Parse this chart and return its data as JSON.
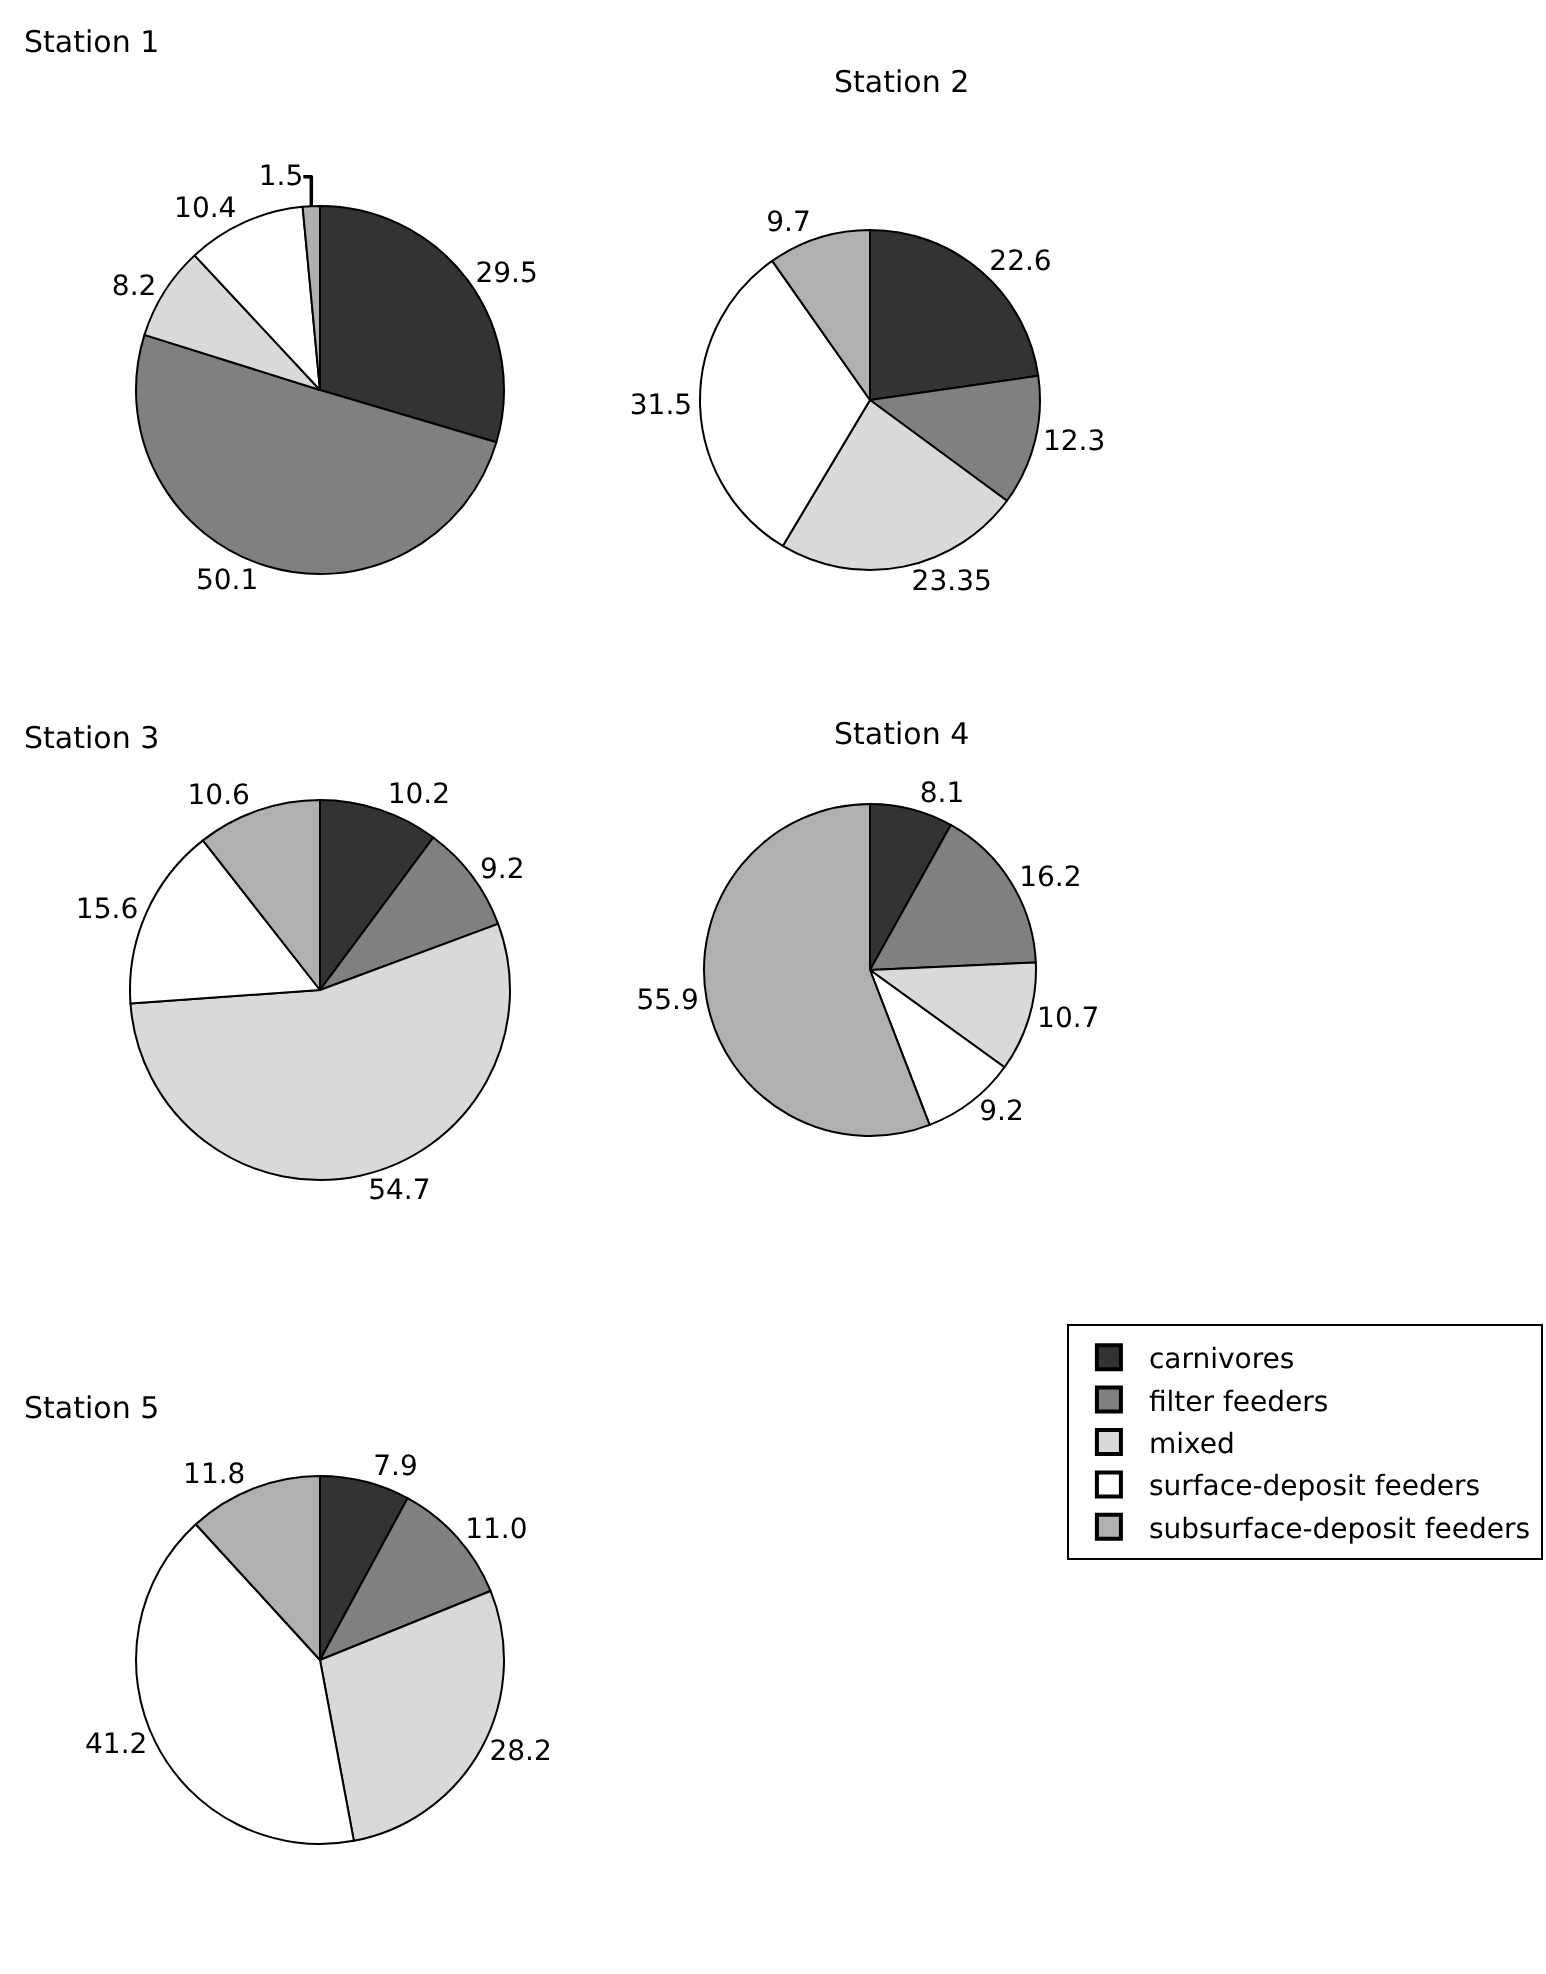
{
  "chart_data": [
    {
      "type": "pie",
      "title": "Station 1",
      "categories": [
        "carnivores",
        "filter feeders",
        "mixed",
        "surface-deposit feeders",
        "subsurface-deposit feeders"
      ],
      "values": [
        29.5,
        50.1,
        8.2,
        10.4,
        1.5
      ],
      "value_labels": [
        "29.5",
        "50.1",
        "8.2",
        "10.4",
        "1.5"
      ],
      "colors": [
        "#333333",
        "#808080",
        "#d9d9d9",
        "#ffffff",
        "#b0b0b0"
      ],
      "legend": "bottom right"
    },
    {
      "type": "pie",
      "title": "Station 2",
      "categories": [
        null,
        null,
        null,
        null,
        null
      ],
      "values": [
        22.6,
        12.3,
        23.35,
        31.5,
        9.7
      ],
      "value_labels": [
        "22.6",
        "12.3",
        "23.35",
        "31.5",
        "9.7"
      ],
      "colors": [
        "#333333",
        "#808080",
        "#d9d9d9",
        "#ffffff",
        "#b0b0b0"
      ]
    },
    {
      "type": "pie",
      "title": "Station 3",
      "categories": [
        null,
        null,
        null,
        null,
        null
      ],
      "values": [
        10.2,
        9.2,
        54.7,
        15.6,
        10.6
      ],
      "value_labels": [
        "10.2",
        "9.2",
        "54.7",
        "15.6",
        "10.6"
      ],
      "colors": [
        "#333333",
        "#808080",
        "#d9d9d9",
        "#ffffff",
        "#b0b0b0"
      ]
    },
    {
      "type": "pie",
      "title": "Station 4",
      "categories": [
        null,
        null,
        null,
        null,
        null
      ],
      "values": [
        8.1,
        16.2,
        10.7,
        9.2,
        55.9
      ],
      "value_labels": [
        "8.1",
        "16.2",
        "10.7",
        "9.2",
        "55.9"
      ],
      "colors": [
        "#333333",
        "#808080",
        "#d9d9d9",
        "#ffffff",
        "#b0b0b0"
      ]
    },
    {
      "type": "pie",
      "title": "Station 5",
      "categories": [
        null,
        null,
        null,
        null,
        null
      ],
      "values": [
        7.9,
        11.0,
        28.2,
        41.2,
        11.8
      ],
      "value_labels": [
        "7.9",
        "11.0",
        "28.2",
        "41.2",
        "11.8"
      ],
      "colors": [
        "#333333",
        "#808080",
        "#d9d9d9",
        "#ffffff",
        "#b0b0b0"
      ]
    }
  ]
}
